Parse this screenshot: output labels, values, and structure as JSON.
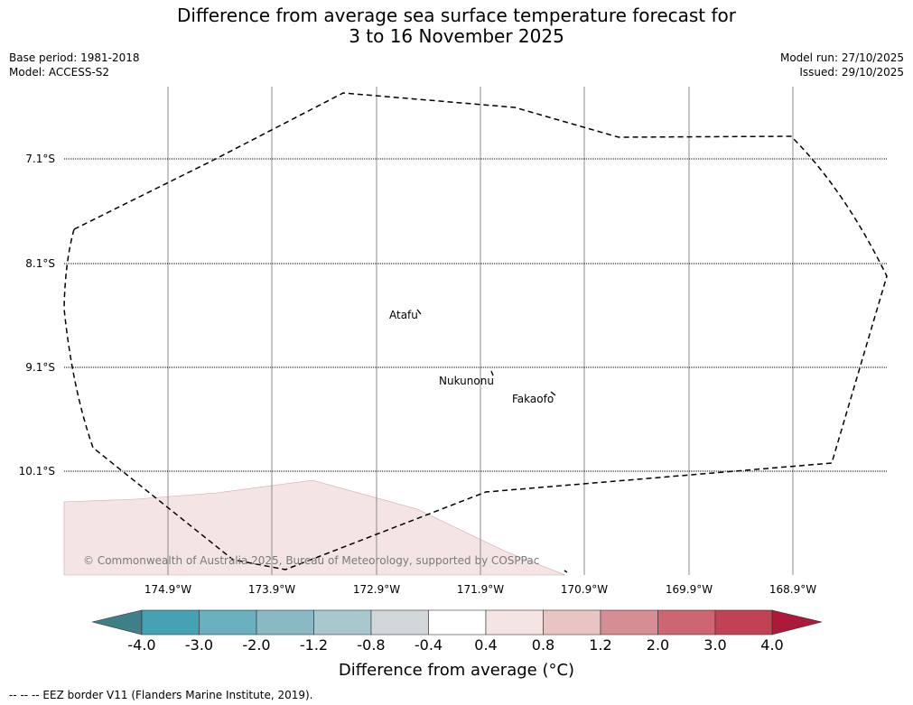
{
  "title_line1": "Difference from average sea surface temperature forecast for",
  "title_line2": "3 to 16 November 2025",
  "base_period": "Base period: 1981-2018",
  "model": "Model: ACCESS-S2",
  "model_run": "Model run: 27/10/2025",
  "issued": "Issued: 29/10/2025",
  "lat_labels": [
    "7.1°S",
    "8.1°S",
    "9.1°S",
    "10.1°S"
  ],
  "lon_labels": [
    "174.9°W",
    "173.9°W",
    "172.9°W",
    "171.9°W",
    "170.9°W",
    "169.9°W",
    "168.9°W"
  ],
  "places": [
    "Atafu",
    "Nukunonu",
    "Fakaofo"
  ],
  "copyright": "© Commonwealth of Australia 2025, Bureau of Meteorology, supported by COSPPac",
  "colorbar": {
    "ticks": [
      "-4.0",
      "-3.0",
      "-2.0",
      "-1.2",
      "-0.8",
      "-0.4",
      "0.4",
      "0.8",
      "1.2",
      "2.0",
      "3.0",
      "4.0"
    ],
    "colors": [
      "#3e7f88",
      "#45a2b3",
      "#6ab0be",
      "#8ab9c4",
      "#a9c8cd",
      "#d1d7d9",
      "#ffffff",
      "#f4e5e4",
      "#e8c4c2",
      "#d68e95",
      "#cd6670",
      "#c14353",
      "#ad1a39"
    ],
    "title": "Difference from average (°C)"
  },
  "footer": "--  --  -- EEZ border V11 (Flanders Marine Institute, 2019)."
}
